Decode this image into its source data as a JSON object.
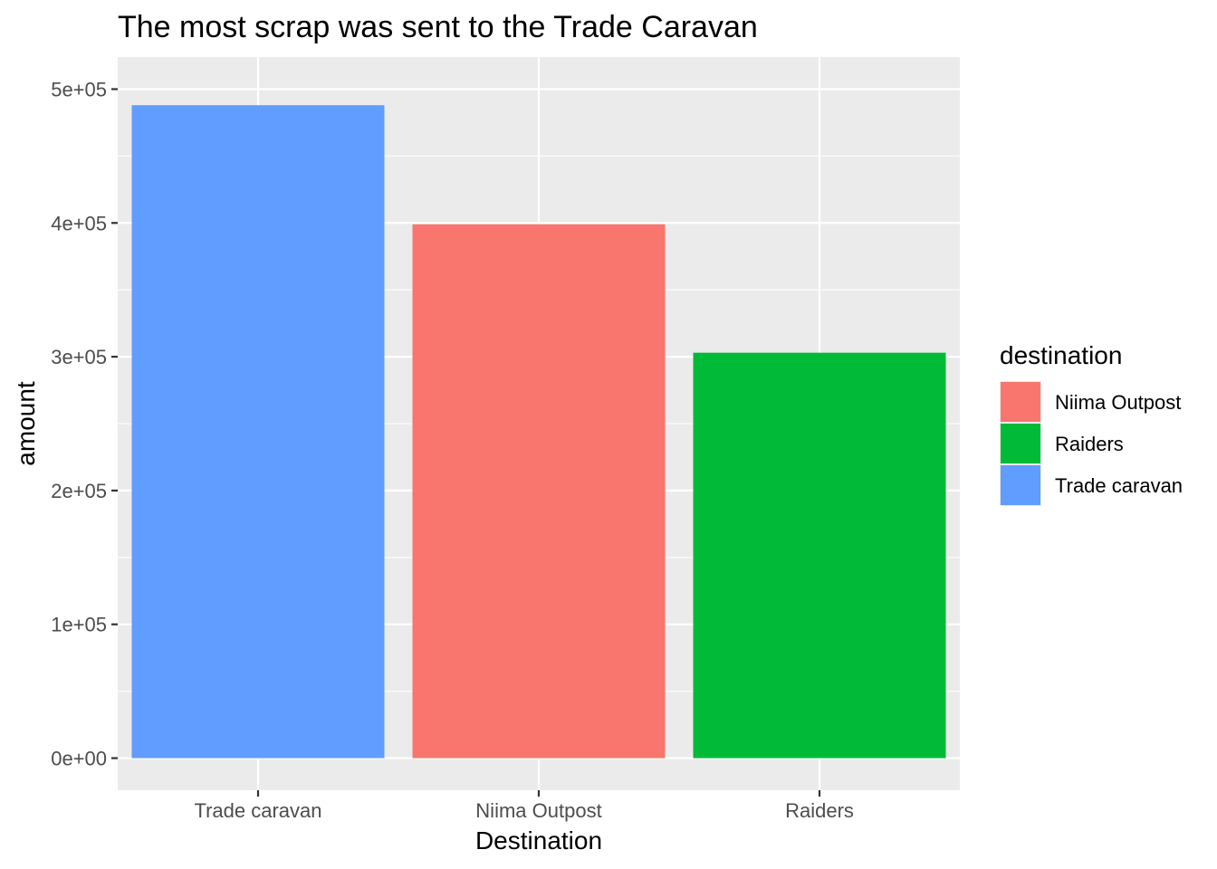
{
  "chart_data": {
    "type": "bar",
    "title": "The most scrap was sent to the Trade Caravan",
    "xlabel": "Destination",
    "ylabel": "amount",
    "categories": [
      "Trade caravan",
      "Niima Outpost",
      "Raiders"
    ],
    "values": [
      488000,
      399000,
      303000
    ],
    "bar_colors": [
      "#619CFF",
      "#F8766D",
      "#00BA38"
    ],
    "ylim": [
      -24000,
      524000
    ],
    "y_ticks": [
      0,
      100000,
      200000,
      300000,
      400000,
      500000
    ],
    "y_tick_labels": [
      "0e+00",
      "1e+05",
      "2e+05",
      "3e+05",
      "4e+05",
      "5e+05"
    ],
    "grid": true,
    "panel_background": "#EBEBEB",
    "grid_color": "#FFFFFF",
    "legend": {
      "title": "destination",
      "position": "right",
      "items": [
        {
          "label": "Niima Outpost",
          "color": "#F8766D"
        },
        {
          "label": "Raiders",
          "color": "#00BA38"
        },
        {
          "label": "Trade caravan",
          "color": "#619CFF"
        }
      ]
    }
  }
}
